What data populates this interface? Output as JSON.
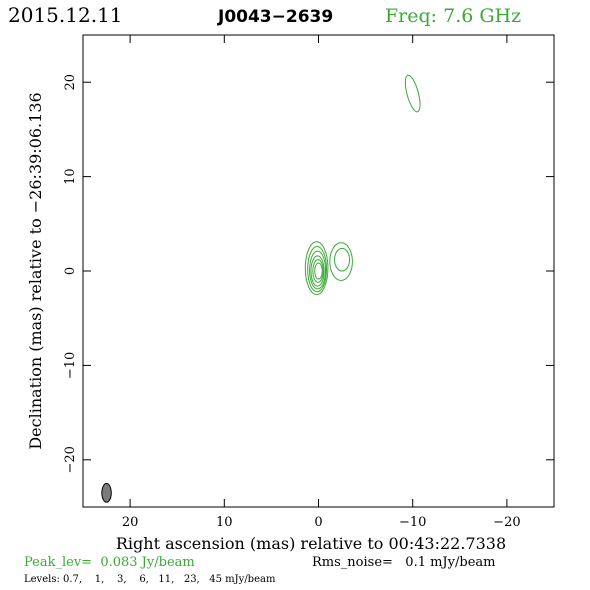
{
  "header": {
    "date": "2015.12.11",
    "source": "J0043−2639",
    "freq": "Freq: 7.6 GHz"
  },
  "axes": {
    "xlabel": "Right ascension (mas) relative to 00:43:22.7338",
    "ylabel": "Declination (mas) relative to −26:39:06.136",
    "xticks": [
      "20",
      "10",
      "0",
      "−10",
      "−20"
    ],
    "yticks": [
      "20",
      "10",
      "0",
      "−10",
      "−20"
    ]
  },
  "footer": {
    "peak": "Peak_lev=  0.083 Jy/beam",
    "rms": "Rms_noise=   0.1 mJy/beam",
    "levels": "Levels: 0.7,    1,    3,    6,   11,   23,   45 mJy/beam"
  },
  "colors": {
    "contour": "#3aaa35",
    "header_green": "#3aaa35",
    "beam_fill": "#7a7a7a",
    "frame": "#000000"
  },
  "chart_data": {
    "type": "contour",
    "xlim": [
      25,
      -25
    ],
    "ylim": [
      -25,
      25
    ],
    "xticks": [
      20,
      10,
      0,
      -10,
      -20
    ],
    "yticks": [
      20,
      10,
      0,
      -10,
      -20
    ],
    "grid": false,
    "levels_mJy": [
      0.7,
      1,
      3,
      6,
      11,
      23,
      45
    ],
    "peak_Jy_per_beam": 0.083,
    "rms_noise_mJy_per_beam": 0.1,
    "components": [
      {
        "name": "core",
        "x": 0.0,
        "y": 0.0,
        "contours": [
          {
            "cx": 0.2,
            "cy": 0.3,
            "rx": 1.2,
            "ry": 2.8
          },
          {
            "cx": 0.15,
            "cy": 0.2,
            "rx": 1.0,
            "ry": 2.4
          },
          {
            "cx": 0.1,
            "cy": 0.1,
            "rx": 0.85,
            "ry": 2.0
          },
          {
            "cx": 0.1,
            "cy": 0.0,
            "rx": 0.7,
            "ry": 1.6
          },
          {
            "cx": 0.05,
            "cy": 0.0,
            "rx": 0.55,
            "ry": 1.2
          },
          {
            "cx": 0.0,
            "cy": 0.0,
            "rx": 0.4,
            "ry": 0.85
          }
        ]
      },
      {
        "name": "inner-jet",
        "x": -2.5,
        "y": 1.0,
        "contours": [
          {
            "cx": -2.4,
            "cy": 1.0,
            "rx": 1.2,
            "ry": 2.0
          },
          {
            "cx": -2.5,
            "cy": 1.2,
            "rx": 0.8,
            "ry": 1.2
          }
        ]
      },
      {
        "name": "outer-component",
        "x": -10.0,
        "y": 18.8,
        "contours": [
          {
            "cx": -10.0,
            "cy": 18.8,
            "rx": 0.6,
            "ry": 2.0,
            "rot": -15
          }
        ]
      }
    ],
    "beam": {
      "x": 22.5,
      "y": -23.5,
      "major_mas": 2.0,
      "minor_mas": 1.0,
      "pa_deg": 0
    }
  }
}
